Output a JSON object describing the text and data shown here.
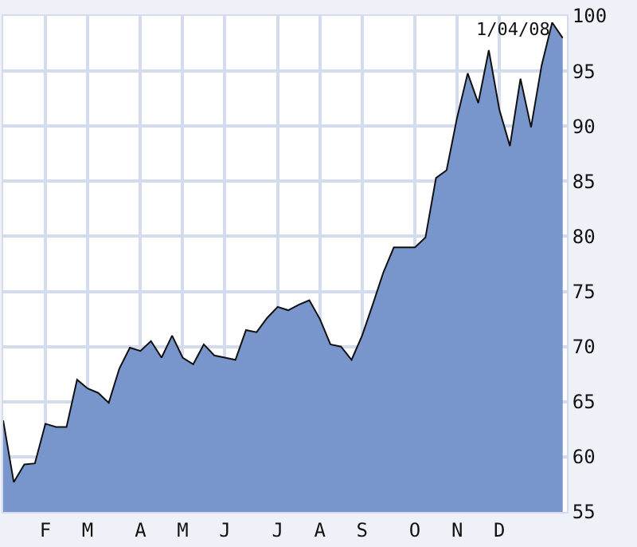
{
  "chart_data": {
    "type": "area",
    "categories": [
      null,
      null,
      null,
      null,
      "F",
      null,
      null,
      null,
      "M",
      null,
      null,
      null,
      null,
      "A",
      null,
      null,
      null,
      "M",
      null,
      null,
      null,
      "J",
      null,
      null,
      null,
      null,
      "J",
      null,
      null,
      null,
      "A",
      null,
      null,
      null,
      "S",
      null,
      null,
      null,
      null,
      "O",
      null,
      null,
      null,
      "N",
      null,
      null,
      null,
      "D",
      null,
      null,
      null,
      null,
      null,
      null
    ],
    "series": [
      {
        "color": "#7896cc",
        "values": [
          63.3,
          57.7,
          59.3,
          59.4,
          63.0,
          62.7,
          62.7,
          67.0,
          66.2,
          65.8,
          64.9,
          68.0,
          69.9,
          69.6,
          70.5,
          69.0,
          71.0,
          69.0,
          68.4,
          70.2,
          69.2,
          69.0,
          68.8,
          71.5,
          71.3,
          72.6,
          73.6,
          73.3,
          73.8,
          74.2,
          72.5,
          70.2,
          70.0,
          68.8,
          71.0,
          73.8,
          76.7,
          79.0,
          79.0,
          79.0,
          79.9,
          85.3,
          86.0,
          90.8,
          94.8,
          92.1,
          96.9,
          91.5,
          88.2,
          94.3,
          89.9,
          95.5,
          99.4,
          98.0
        ]
      }
    ],
    "ylim": [
      55,
      100
    ],
    "yticks": [
      55,
      60,
      65,
      70,
      75,
      80,
      85,
      90,
      95,
      100
    ],
    "grid": true,
    "annotations": [
      "1/04/08"
    ]
  }
}
